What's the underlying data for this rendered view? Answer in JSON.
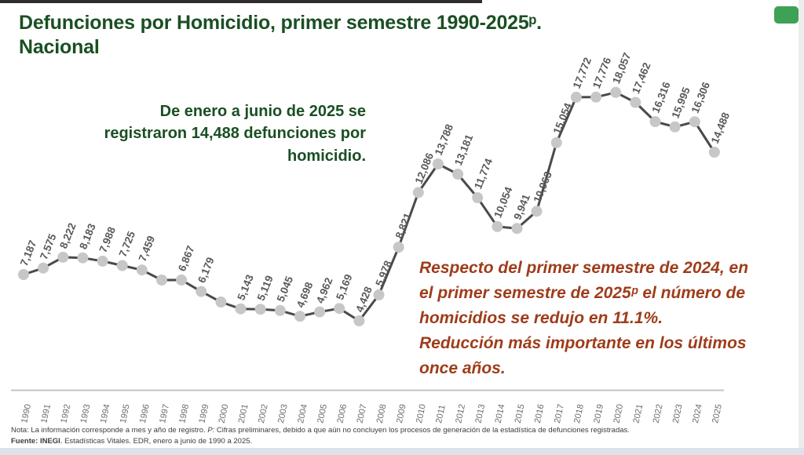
{
  "header": {
    "title": "Defunciones por Homicidio, primer semestre 1990-2025ᵖ.\nNacional"
  },
  "callout": {
    "text": "De enero a junio de 2025 se\nregistraron 14,488 defunciones por\nhomicidio."
  },
  "annotation": {
    "text": "Respecto del primer semestre de 2024, en\nel primer semestre de 2025ᵖ el número de\nhomicidios se redujo en 11.1%.\nReducción más importante en los últimos\nonce años."
  },
  "chart_data": {
    "type": "line",
    "title": "Defunciones por Homicidio, primer semestre 1990-2025, Nacional",
    "x": [
      "1990",
      "1991",
      "1992",
      "1993",
      "1994",
      "1995",
      "1996",
      "1997",
      "1998",
      "1999",
      "2000",
      "2001",
      "2002",
      "2003",
      "2004",
      "2005",
      "2006",
      "2007",
      "2008",
      "2009",
      "2010",
      "2011",
      "2012",
      "2013",
      "2014",
      "2015",
      "2016",
      "2017",
      "2018",
      "2019",
      "2020",
      "2021",
      "2022",
      "2023",
      "2024",
      "2025"
    ],
    "values": [
      7187,
      7575,
      8222,
      8183,
      7988,
      7725,
      7459,
      6860,
      6867,
      6179,
      5550,
      5143,
      5119,
      5045,
      4698,
      4962,
      5169,
      4428,
      5978,
      8821,
      12086,
      13788,
      13181,
      11774,
      10054,
      9941,
      10963,
      15054,
      17772,
      17776,
      18057,
      17462,
      16316,
      15995,
      16306,
      14488
    ],
    "labels": [
      "7,187",
      "7,575",
      "8,222",
      "8,183",
      "7,988",
      "7,725",
      "7,459",
      "",
      "6,867",
      "6,179",
      "",
      "5,143",
      "5,119",
      "5,045",
      "4,698",
      "4,962",
      "5,169",
      "4,428",
      "5,978",
      "8,821",
      "12,086",
      "13,788",
      "13,181",
      "11,774",
      "10,054",
      "9,941",
      "10,963",
      "15,054",
      "17,772",
      "17,776",
      "18,057",
      "17,462",
      "16,316",
      "15,995",
      "16,306",
      "14,488"
    ],
    "xlabel": "",
    "ylabel": "",
    "ylim": [
      0,
      19000
    ],
    "grid": false,
    "legend": "none"
  },
  "footer": {
    "note_prefix": "Nota: La información corresponde a mes y año de registro. ",
    "note_p": "P:",
    "note_rest": " Cifras preliminares, debido a que aún no concluyen los procesos de generación de la estadística de defunciones registradas.",
    "fuente_bold": "Fuente: INEGI",
    "fuente_rest": ". Estadísticas Vitales. EDR, enero a junio de 1990 a 2025."
  },
  "colors": {
    "title_green": "#1a4f23",
    "annotation_rust": "#9e3c1a",
    "line": "#4a4a4a",
    "marker": "#c7c7c7",
    "data_label": "#595959",
    "year_label": "#6b6b6b",
    "axis_line": "#c4c4c4",
    "accent_square_green": "#3fa156"
  }
}
